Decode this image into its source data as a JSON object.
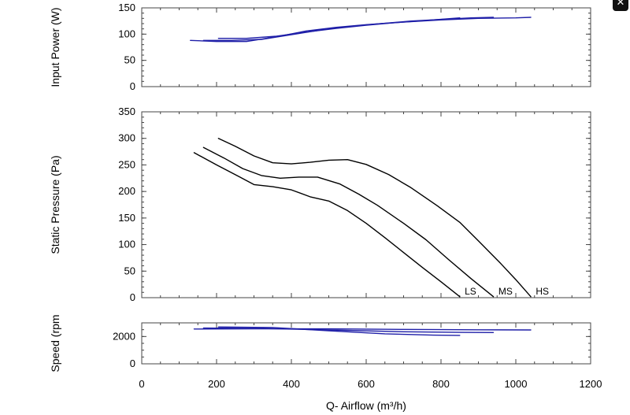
{
  "close_glyph": "✕",
  "chart_data": [
    {
      "id": "power",
      "type": "line",
      "title": "",
      "ylabel": "Input Power (W)",
      "xlabel": "",
      "xlim": [
        0,
        1200
      ],
      "ylim": [
        0,
        150
      ],
      "yticks": [
        0,
        50,
        100,
        150
      ],
      "y_minor_step": 10,
      "xticks": [],
      "grid": false,
      "series": [
        {
          "label": "HS",
          "color": "#1f1fa8",
          "points": [
            [
              130,
              88
            ],
            [
              200,
              86
            ],
            [
              280,
              86
            ],
            [
              360,
              95
            ],
            [
              440,
              106
            ],
            [
              520,
              113
            ],
            [
              600,
              118
            ],
            [
              700,
              123
            ],
            [
              800,
              127
            ],
            [
              900,
              130
            ],
            [
              1000,
              131
            ],
            [
              1040,
              132
            ]
          ]
        },
        {
          "label": "MS",
          "color": "#1f1fa8",
          "points": [
            [
              165,
              88
            ],
            [
              240,
              88
            ],
            [
              320,
              90
            ],
            [
              400,
              99
            ],
            [
              480,
              108
            ],
            [
              560,
              115
            ],
            [
              640,
              120
            ],
            [
              720,
              125
            ],
            [
              800,
              128
            ],
            [
              880,
              131
            ],
            [
              940,
              132
            ]
          ]
        },
        {
          "label": "LS",
          "color": "#1f1fa8",
          "points": [
            [
              205,
              92
            ],
            [
              280,
              92
            ],
            [
              360,
              96
            ],
            [
              440,
              104
            ],
            [
              520,
              111
            ],
            [
              600,
              117
            ],
            [
              680,
              122
            ],
            [
              760,
              126
            ],
            [
              850,
              131
            ]
          ]
        }
      ]
    },
    {
      "id": "pressure",
      "type": "line",
      "title": "",
      "ylabel": "Static Pressure (Pa)",
      "xlabel": "",
      "xlim": [
        0,
        1200
      ],
      "ylim": [
        0,
        350
      ],
      "yticks": [
        0,
        50,
        100,
        150,
        200,
        250,
        300,
        350
      ],
      "y_minor_step": 10,
      "xticks": [],
      "grid": false,
      "series": [
        {
          "label": "LS",
          "color": "#000000",
          "points": [
            [
              140,
              273
            ],
            [
              200,
              250
            ],
            [
              260,
              228
            ],
            [
              300,
              213
            ],
            [
              350,
              209
            ],
            [
              400,
              203
            ],
            [
              450,
              190
            ],
            [
              500,
              182
            ],
            [
              550,
              164
            ],
            [
              600,
              140
            ],
            [
              650,
              113
            ],
            [
              700,
              85
            ],
            [
              750,
              57
            ],
            [
              800,
              30
            ],
            [
              850,
              2
            ]
          ]
        },
        {
          "label": "MS",
          "color": "#000000",
          "points": [
            [
              165,
              283
            ],
            [
              220,
              263
            ],
            [
              270,
              243
            ],
            [
              320,
              230
            ],
            [
              370,
              225
            ],
            [
              420,
              227
            ],
            [
              470,
              227
            ],
            [
              530,
              214
            ],
            [
              580,
              195
            ],
            [
              630,
              174
            ],
            [
              700,
              140
            ],
            [
              760,
              109
            ],
            [
              820,
              72
            ],
            [
              880,
              36
            ],
            [
              940,
              2
            ]
          ]
        },
        {
          "label": "HS",
          "color": "#000000",
          "points": [
            [
              205,
              300
            ],
            [
              250,
              285
            ],
            [
              300,
              267
            ],
            [
              350,
              254
            ],
            [
              400,
              252
            ],
            [
              450,
              255
            ],
            [
              500,
              259
            ],
            [
              550,
              260
            ],
            [
              600,
              251
            ],
            [
              660,
              232
            ],
            [
              720,
              207
            ],
            [
              790,
              173
            ],
            [
              850,
              142
            ],
            [
              900,
              107
            ],
            [
              960,
              64
            ],
            [
              1000,
              34
            ],
            [
              1040,
              2
            ]
          ]
        }
      ],
      "curve_labels": [
        {
          "text": "LS",
          "x": 855,
          "y": 0
        },
        {
          "text": "MS",
          "x": 945,
          "y": 0
        },
        {
          "text": "HS",
          "x": 1045,
          "y": 0
        }
      ]
    },
    {
      "id": "speed",
      "type": "line",
      "title": "",
      "ylabel": "Speed (rpm",
      "xlabel": "Q- Airflow (m³/h)",
      "xlim": [
        0,
        1200
      ],
      "ylim": [
        0,
        3000
      ],
      "yticks": [
        0,
        2000
      ],
      "y_minor_step": 500,
      "xticks": [
        0,
        200,
        400,
        600,
        800,
        1000,
        1200
      ],
      "x_minor_step": 50,
      "grid": false,
      "series": [
        {
          "label": "HS",
          "color": "#1f1fa8",
          "points": [
            [
              140,
              2550
            ],
            [
              300,
              2570
            ],
            [
              500,
              2560
            ],
            [
              700,
              2520
            ],
            [
              900,
              2490
            ],
            [
              1040,
              2480
            ]
          ]
        },
        {
          "label": "MS",
          "color": "#1f1fa8",
          "points": [
            [
              165,
              2620
            ],
            [
              300,
              2600
            ],
            [
              500,
              2480
            ],
            [
              700,
              2350
            ],
            [
              850,
              2300
            ],
            [
              940,
              2290
            ]
          ]
        },
        {
          "label": "LS",
          "color": "#1f1fa8",
          "points": [
            [
              205,
              2700
            ],
            [
              350,
              2660
            ],
            [
              500,
              2420
            ],
            [
              650,
              2200
            ],
            [
              780,
              2100
            ],
            [
              850,
              2080
            ]
          ]
        }
      ]
    }
  ]
}
